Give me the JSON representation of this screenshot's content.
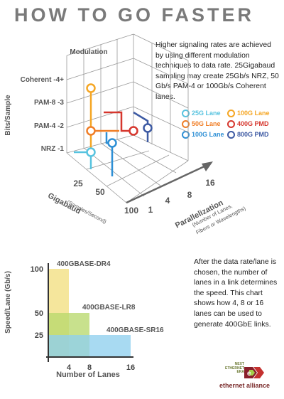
{
  "title": "HOW TO GO FASTER",
  "description_top": "Higher signaling rates are achieved by using different modulation techniques to data rate. 25Gigabaud sampling may create 25Gb/s NRZ, 50 Gb/s PAM-4 or 100Gb/s Coherent lanes.",
  "description_bottom": "After the data rate/lane is chosen, the number of lanes in a link determines the speed. This chart shows how 4, 8 or 16 lanes can be used to generate 400GbE links.",
  "legend": [
    {
      "label": "25G Lane",
      "color": "#57c3df"
    },
    {
      "label": "100G Lane",
      "color": "#f5a623"
    },
    {
      "label": "50G Lane",
      "color": "#f07e26"
    },
    {
      "label": "400G PMD",
      "color": "#d6362d"
    },
    {
      "label": "100G Lane",
      "color": "#2d8fd5"
    },
    {
      "label": "800G PMD",
      "color": "#3d5aa3"
    }
  ],
  "diagram3d": {
    "modulation_axis": {
      "title": "Modulation",
      "labels": [
        "Coherent -4+",
        "PAM-8 -3",
        "PAM-4 -2",
        "NRZ -1"
      ]
    },
    "bits_axis_label": "Bits/Sample",
    "gigabaud_axis": {
      "title": "Gigabaud",
      "subtitle": "(Samples/Second)",
      "labels": [
        "25",
        "50",
        "100"
      ]
    },
    "parallelization_axis": {
      "title": "Parallelization",
      "subtitle_lines": [
        "(Number of Lanes,",
        "Fibers or Wavelengths)"
      ],
      "labels": [
        "1",
        "4",
        "8",
        "16"
      ]
    }
  },
  "chart_data": {
    "type": "bar",
    "xlabel": "Number of Lanes",
    "ylabel": "Speed/Lane (Gb/s)",
    "x_ticks": [
      4,
      8,
      16
    ],
    "y_ticks": [
      25,
      50,
      100
    ],
    "xlim": [
      0,
      16
    ],
    "ylim": [
      0,
      100
    ],
    "series": [
      {
        "name": "400GBASE-DR4",
        "lanes": 4,
        "speed_per_lane": 100,
        "color": "#f2df80"
      },
      {
        "name": "400GBASE-LR8",
        "lanes": 8,
        "speed_per_lane": 50,
        "color": "#b9d96d"
      },
      {
        "name": "400GBASE-SR16",
        "lanes": 16,
        "speed_per_lane": 25,
        "color": "#8fd0ee"
      }
    ]
  },
  "logo": {
    "small_lines": [
      "NEXT",
      "ETHERNET",
      "ERA"
    ],
    "name": "ethernet alliance"
  }
}
